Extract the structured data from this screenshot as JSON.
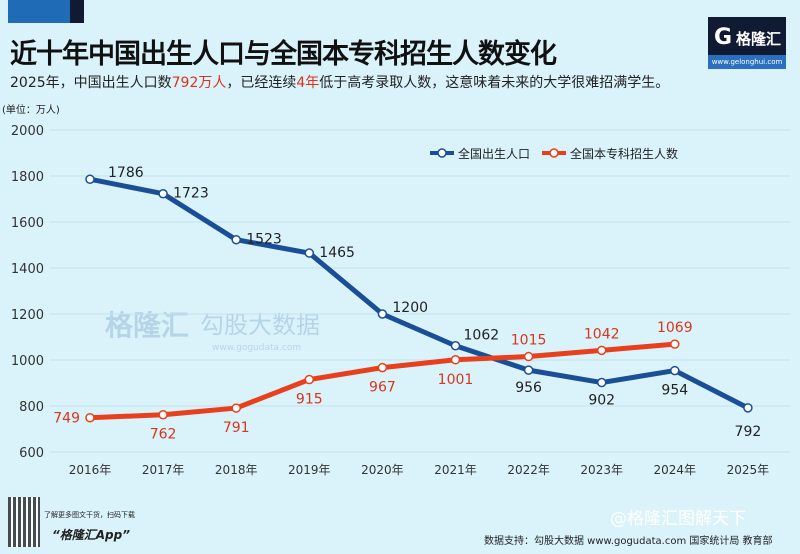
{
  "header": {
    "title": "近十年中国出生人口与全国本专科招生人数变化",
    "subtitle_parts": [
      "2025年，中国出生人口数",
      "792万人",
      "，已经连续",
      "4年",
      "低于高考录取人数，这意味着未来的大学很难招满学生。"
    ],
    "unit": "(单位：万人)"
  },
  "logo": {
    "name": "格隆汇",
    "url": "www.gelonghui.com"
  },
  "watermark": [
    "格隆汇",
    "勾股大数据",
    "www.gogudata.com"
  ],
  "footer": {
    "promo": "了解更多图文干货，扫码下载",
    "app": "“格隆汇App”",
    "source": "数据支持：勾股大数据 www.gogudata.com 国家统计局 教育部",
    "weibo": "@格隆汇图解天下"
  },
  "chart_data": {
    "type": "line",
    "title": "近十年中国出生人口与全国本专科招生人数变化",
    "categories": [
      "2016年",
      "2017年",
      "2018年",
      "2019年",
      "2020年",
      "2021年",
      "2022年",
      "2023年",
      "2024年",
      "2025年"
    ],
    "ylim": [
      600,
      2000
    ],
    "yticks": [
      600,
      800,
      1000,
      1200,
      1400,
      1600,
      1800,
      2000
    ],
    "grid": true,
    "legend": "top-right",
    "series": [
      {
        "name": "全国出生人口",
        "color": "#1a4e96",
        "values": [
          1786,
          1723,
          1523,
          1465,
          1200,
          1062,
          956,
          902,
          954,
          792
        ]
      },
      {
        "name": "全国本专科招生人数",
        "color": "#e8401c",
        "values": [
          749,
          762,
          791,
          915,
          967,
          1001,
          1015,
          1042,
          1069,
          null
        ]
      }
    ]
  }
}
